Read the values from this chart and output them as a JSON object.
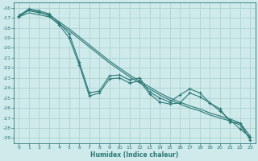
{
  "xlabel": "Humidex (Indice chaleur)",
  "bg_color": "#ceeaea",
  "grid_color": "#aacece",
  "line_color": "#2d7878",
  "marker_color": "#2d7878",
  "xlim": [
    -0.5,
    23.5
  ],
  "ylim": [
    -29.5,
    -15.5
  ],
  "yticks": [
    -16,
    -17,
    -18,
    -19,
    -20,
    -21,
    -22,
    -23,
    -24,
    -25,
    -26,
    -27,
    -28,
    -29
  ],
  "xticks": [
    0,
    1,
    2,
    3,
    4,
    5,
    6,
    7,
    8,
    9,
    10,
    11,
    12,
    13,
    14,
    15,
    16,
    17,
    18,
    19,
    20,
    21,
    22,
    23
  ],
  "series_smooth1": [
    -16.7,
    -16.3,
    -16.5,
    -16.7,
    -17.4,
    -18.1,
    -18.9,
    -19.7,
    -20.5,
    -21.3,
    -22.0,
    -22.7,
    -23.3,
    -23.9,
    -24.5,
    -25.0,
    -25.4,
    -25.8,
    -26.1,
    -26.5,
    -26.8,
    -27.1,
    -27.5,
    -28.8
  ],
  "series_smooth2": [
    -16.9,
    -16.5,
    -16.7,
    -16.9,
    -17.6,
    -18.3,
    -19.1,
    -19.9,
    -20.7,
    -21.5,
    -22.2,
    -22.9,
    -23.5,
    -24.1,
    -24.7,
    -25.2,
    -25.6,
    -26.0,
    -26.3,
    -26.7,
    -27.0,
    -27.3,
    -27.7,
    -29.1
  ],
  "series_wiggly1": [
    -16.8,
    -16.1,
    -16.3,
    -16.6,
    -17.5,
    -18.6,
    -21.4,
    -24.5,
    -24.3,
    -22.8,
    -22.7,
    -23.2,
    -23.0,
    -24.4,
    -25.0,
    -25.4,
    -24.7,
    -24.1,
    -24.5,
    -25.5,
    -26.3,
    -27.2,
    -28.1,
    -28.9
  ],
  "series_wiggly2": [
    -16.9,
    -16.2,
    -16.4,
    -16.8,
    -17.7,
    -19.0,
    -21.7,
    -24.8,
    -24.5,
    -23.1,
    -23.0,
    -23.5,
    -23.3,
    -24.6,
    -25.4,
    -25.6,
    -25.5,
    -24.5,
    -24.9,
    -25.5,
    -26.1,
    -27.4,
    -27.5,
    -29.2
  ]
}
